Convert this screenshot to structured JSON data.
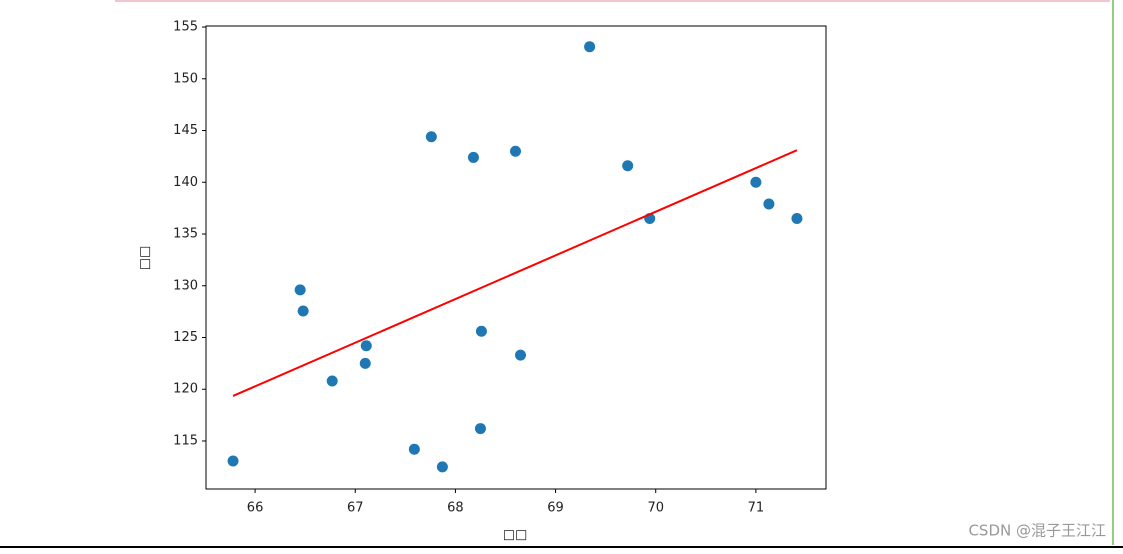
{
  "chart_data": {
    "type": "scatter",
    "xlabel": "□□",
    "ylabel": "□□",
    "xlim": [
      65.51,
      71.7
    ],
    "ylim": [
      110.36,
      155.1
    ],
    "xticks": [
      66,
      67,
      68,
      69,
      70,
      71
    ],
    "yticks": [
      115,
      120,
      125,
      130,
      135,
      140,
      145,
      150,
      155
    ],
    "series": [
      {
        "type": "scatter",
        "color": "#1f77b4",
        "x": [
          65.78,
          66.45,
          66.48,
          66.77,
          67.1,
          67.11,
          67.59,
          67.76,
          67.87,
          68.18,
          68.25,
          68.26,
          68.6,
          68.65,
          69.34,
          69.72,
          69.94,
          71.0,
          71.13,
          71.41
        ],
        "values": [
          113.07,
          129.6,
          127.56,
          120.8,
          122.5,
          124.2,
          114.2,
          144.4,
          112.5,
          142.4,
          116.2,
          125.6,
          143.0,
          123.3,
          153.1,
          141.6,
          136.5,
          140.0,
          137.9,
          136.5
        ]
      },
      {
        "type": "line",
        "color": "#ff0000",
        "x": [
          65.78,
          71.41
        ],
        "values": [
          119.35,
          143.1
        ]
      }
    ]
  },
  "watermark": "CSDN @混子王江江"
}
